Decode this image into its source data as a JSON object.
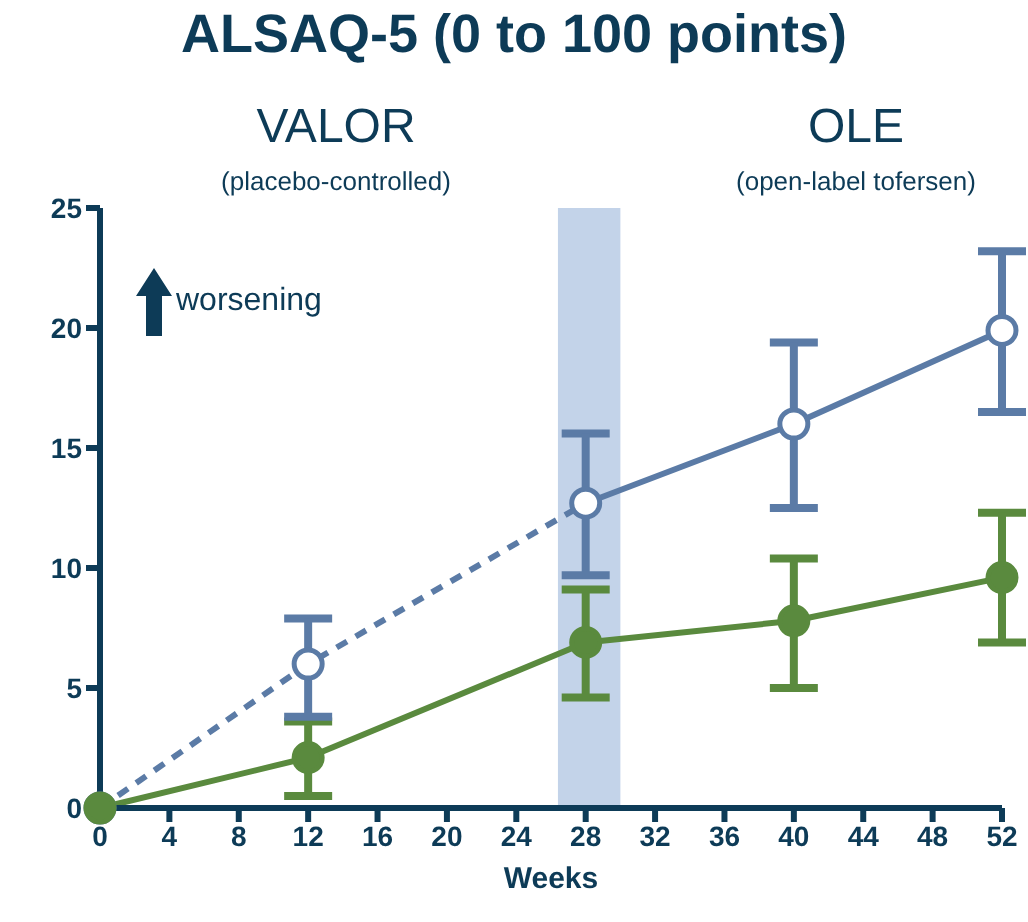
{
  "chart_data": {
    "type": "line",
    "title": "ALSAQ-5 (0 to 100 points)",
    "xlabel": "Weeks",
    "annotations": [
      "VALOR",
      "(placebo-controlled)",
      "OLE",
      "(open-label tofersen)",
      "worsening"
    ],
    "xlim": [
      0,
      52
    ],
    "xticks": [
      0,
      4,
      8,
      12,
      16,
      20,
      24,
      28,
      32,
      36,
      40,
      44,
      48,
      52
    ],
    "ylim": [
      0,
      25
    ],
    "yticks": [
      0,
      5,
      10,
      15,
      20,
      25
    ],
    "bands": [
      {
        "axis": "x",
        "from": 26.4,
        "to": 30,
        "color": "#c3d3e9"
      }
    ],
    "series": [
      {
        "color": "#5b7ba6",
        "x": [
          0,
          12,
          28
        ],
        "values": [
          0,
          6,
          12.7
        ],
        "line_style": "dashed",
        "marker": "none"
      },
      {
        "color": "#5b7ba6",
        "x": [
          28,
          40,
          52
        ],
        "values": [
          12.7,
          16,
          19.9
        ],
        "line_style": "solid",
        "marker": "none"
      },
      {
        "color": "#5a8a3e",
        "x": [
          0,
          12,
          28,
          40,
          52
        ],
        "values": [
          0,
          2.1,
          6.9,
          7.8,
          9.6
        ],
        "errors": [
          null,
          [
            0.5,
            3.6
          ],
          [
            4.6,
            9.1
          ],
          [
            5.0,
            10.4
          ],
          [
            6.9,
            12.3
          ]
        ],
        "line_style": "solid",
        "marker": "circle"
      },
      {
        "type": "scatter",
        "color": "#5b7ba6",
        "x": [
          0,
          12,
          28,
          40,
          52
        ],
        "values": [
          0,
          6,
          12.7,
          16,
          19.9
        ],
        "errors": [
          null,
          [
            3.8,
            7.9
          ],
          [
            9.7,
            15.6
          ],
          [
            12.5,
            19.4
          ],
          [
            16.5,
            23.2
          ]
        ],
        "marker": "circle"
      }
    ]
  }
}
